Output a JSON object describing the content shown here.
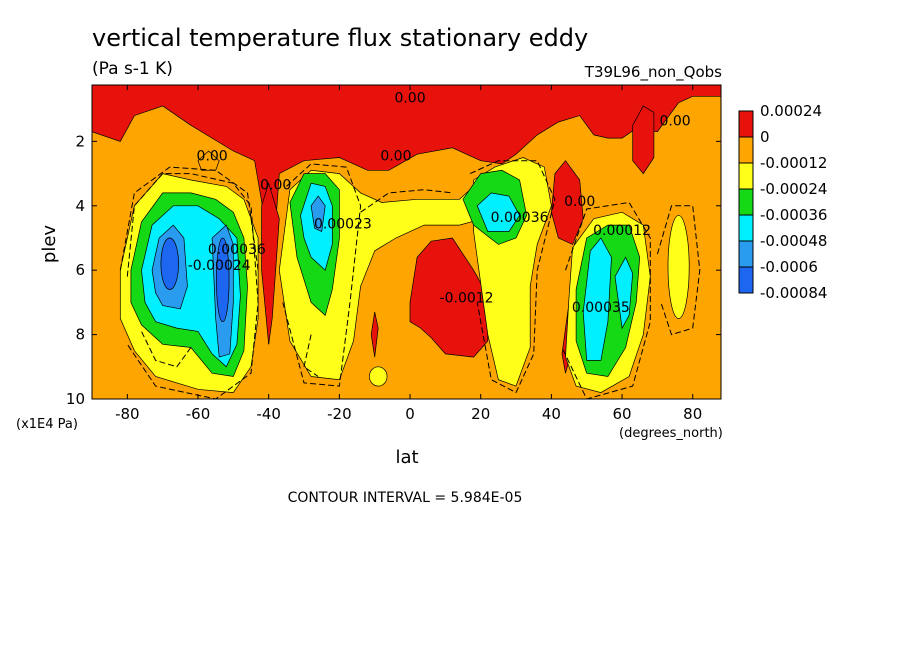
{
  "chart_data": {
    "type": "heatmap",
    "title": "vertical temperature flux stationary eddy",
    "subtitle": "(Pa s-1 K)",
    "model_label": "T39L96_non_Qobs",
    "xlabel": "lat",
    "x_units": "(degrees_north)",
    "ylabel": "plev",
    "y_units": "(x1E4 Pa)",
    "xlim": [
      -90,
      88
    ],
    "ylim": [
      10,
      0.25
    ],
    "y_reversed": true,
    "x_ticks": [
      -80,
      -60,
      -40,
      -20,
      0,
      20,
      40,
      60,
      80
    ],
    "x_tick_labels": [
      "-80",
      "-60",
      "-40",
      "-20",
      "0",
      "20",
      "40",
      "60",
      "80"
    ],
    "y_ticks": [
      2,
      4,
      6,
      8,
      10
    ],
    "y_tick_labels": [
      "2",
      "4",
      "6",
      "8",
      "10"
    ],
    "legend_position": "right",
    "colorbar": {
      "labels": [
        "0.00024",
        "0",
        "-0.00012",
        "-0.00024",
        "-0.00036",
        "-0.00048",
        "-0.0006",
        "-0.00084"
      ],
      "colors": [
        "#e8120c",
        "#ffa500",
        "#ffff1a",
        "#14d914",
        "#00f0ff",
        "#2a9cf0",
        "#1c66f0"
      ]
    },
    "contour_interval_text": "CONTOUR INTERVAL = 5.984E-05",
    "contour_labels": [
      {
        "text": "0.00",
        "lon": 0,
        "plev": 0.8
      },
      {
        "text": "0.00",
        "lon": -56,
        "plev": 2.6
      },
      {
        "text": "0.00",
        "lon": -4,
        "plev": 2.6
      },
      {
        "text": "0.00",
        "lon": 75,
        "plev": 1.5
      },
      {
        "text": "0.00",
        "lon": 48,
        "plev": 4.0
      },
      {
        "text": "0.00",
        "lon": -38,
        "plev": 3.5
      },
      {
        "text": "-0.00024",
        "lon": -54,
        "plev": 6.0
      },
      {
        "text": "0.00036",
        "lon": -49,
        "plev": 5.5
      },
      {
        "text": "0.00023",
        "lon": -19,
        "plev": 4.7
      },
      {
        "text": "0.00036",
        "lon": 31,
        "plev": 4.5
      },
      {
        "text": "-0.0012",
        "lon": 16,
        "plev": 7.0
      },
      {
        "text": "0.00012",
        "lon": 60,
        "plev": 4.9
      },
      {
        "text": "0.00035",
        "lon": 54,
        "plev": 7.3
      }
    ],
    "regions": [
      {
        "level": "0.00012 to 0.00024",
        "color": "#e8120c",
        "description": "upper-level band around 2 and isolated maxima near 40S, 0-20N, 45N, 65N"
      },
      {
        "level": "-0.00084",
        "color": "#1c66f0",
        "description": "core minima near 65S and 55S at 5-7"
      }
    ]
  },
  "colors": {
    "background": "#ffffff",
    "frame": "#000000",
    "red": "#e8120c",
    "orange": "#ffa500",
    "yellow": "#ffff1a",
    "green": "#14d914",
    "cyan": "#00f0ff",
    "lightblue": "#2a9cf0",
    "blue": "#1c66f0"
  }
}
